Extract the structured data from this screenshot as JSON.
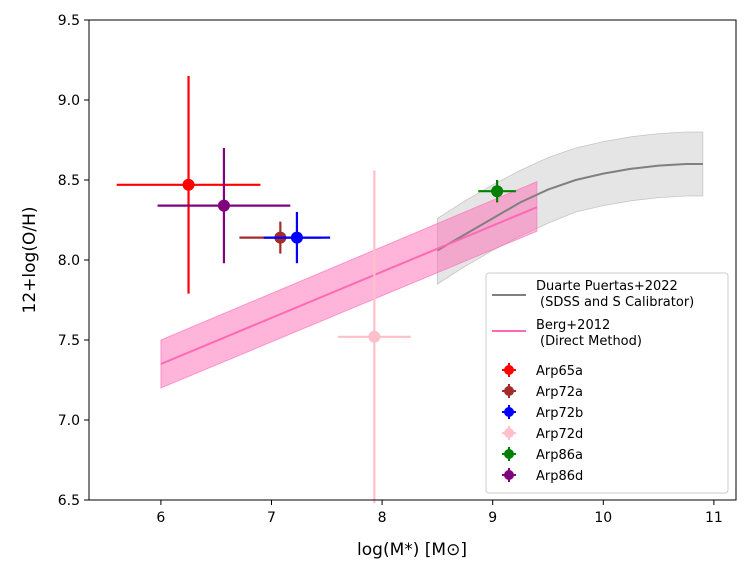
{
  "chart_data": {
    "type": "scatter",
    "xlabel": "log(M*) [M⊙]",
    "ylabel": "12+log(O/H)",
    "xlim": [
      5.35,
      11.2
    ],
    "ylim": [
      6.5,
      9.5
    ],
    "xticks": [
      6,
      7,
      8,
      9,
      10,
      11
    ],
    "yticks": [
      6.5,
      7.0,
      7.5,
      8.0,
      8.5,
      9.0,
      9.5
    ],
    "xtick_labels": [
      "6",
      "7",
      "8",
      "9",
      "10",
      "11"
    ],
    "ytick_labels": [
      "6.5",
      "7.0",
      "7.5",
      "8.0",
      "8.5",
      "9.0",
      "9.5"
    ],
    "grid": false,
    "legend_position": "lower-right",
    "relations": [
      {
        "name": "Duarte Puertas+2022",
        "subtitle": "(SDSS and S Calibrator)",
        "color": "#808080",
        "band_color": "#d3d3d3",
        "x": [
          8.5,
          8.75,
          9.0,
          9.25,
          9.5,
          9.75,
          10.0,
          10.25,
          10.5,
          10.75,
          10.9
        ],
        "y": [
          8.06,
          8.16,
          8.26,
          8.36,
          8.44,
          8.5,
          8.54,
          8.57,
          8.59,
          8.6,
          8.6
        ],
        "y_upper": [
          8.26,
          8.37,
          8.47,
          8.56,
          8.64,
          8.7,
          8.74,
          8.77,
          8.79,
          8.8,
          8.8
        ],
        "y_lower": [
          7.85,
          7.96,
          8.06,
          8.15,
          8.23,
          8.3,
          8.34,
          8.37,
          8.39,
          8.4,
          8.4
        ]
      },
      {
        "name": "Berg+2012",
        "subtitle": "(Direct Method)",
        "color": "#ff69b4",
        "band_color": "#ff69b4",
        "x": [
          6.0,
          9.4
        ],
        "y": [
          7.35,
          8.33
        ],
        "y_upper": [
          7.5,
          8.49
        ],
        "y_lower": [
          7.2,
          8.18
        ]
      }
    ],
    "series": [
      {
        "name": "Arp65a",
        "color": "#ff0000",
        "x": 6.25,
        "y": 8.47,
        "xerr": [
          0.65,
          0.65
        ],
        "yerr": [
          0.68,
          0.68
        ]
      },
      {
        "name": "Arp72a",
        "color": "#a52a2a",
        "x": 7.08,
        "y": 8.14,
        "xerr": [
          0.37,
          0.37
        ],
        "yerr": [
          0.1,
          0.1
        ]
      },
      {
        "name": "Arp72b",
        "color": "#0000ff",
        "x": 7.23,
        "y": 8.14,
        "xerr": [
          0.3,
          0.3
        ],
        "yerr": [
          0.16,
          0.16
        ]
      },
      {
        "name": "Arp72d",
        "color": "#ffc0cb",
        "x": 7.93,
        "y": 7.52,
        "xerr": [
          0.33,
          0.33
        ],
        "yerr": [
          1.04,
          1.04
        ]
      },
      {
        "name": "Arp86a",
        "color": "#008000",
        "x": 9.04,
        "y": 8.43,
        "xerr": [
          0.17,
          0.17
        ],
        "yerr": [
          0.07,
          0.07
        ]
      },
      {
        "name": "Arp86d",
        "color": "#800080",
        "x": 6.57,
        "y": 8.34,
        "xerr": [
          0.6,
          0.6
        ],
        "yerr": [
          0.36,
          0.36
        ]
      }
    ]
  }
}
